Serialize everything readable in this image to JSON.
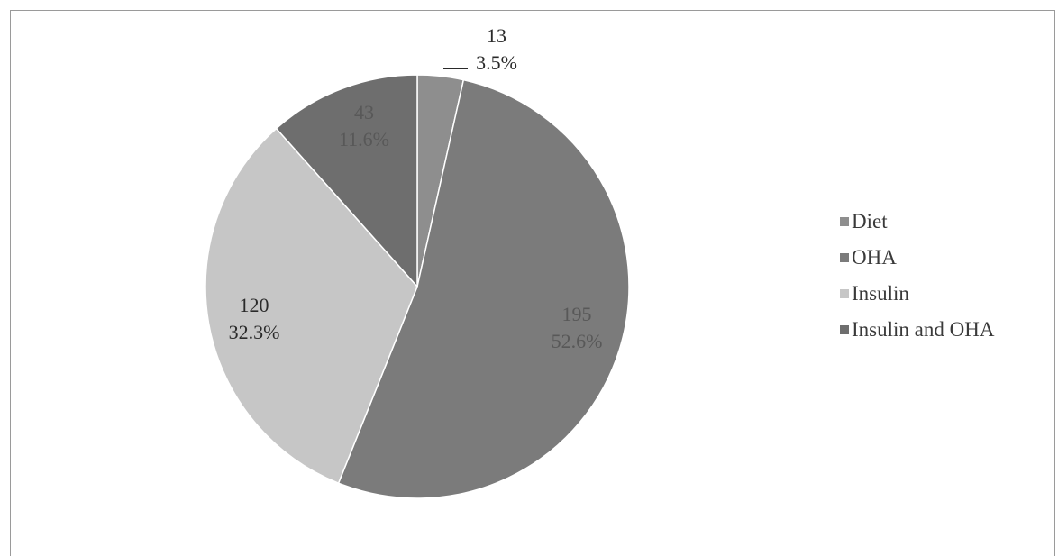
{
  "chart_data": {
    "type": "pie",
    "title": "",
    "categories": [
      "Diet",
      "OHA",
      "Insulin",
      "Insulin and OHA"
    ],
    "values": [
      13,
      195,
      120,
      43
    ],
    "percent_labels": [
      "3.5%",
      "52.6%",
      "32.3%",
      "11.6%"
    ],
    "value_labels": [
      "13",
      "195",
      "120",
      "43"
    ],
    "colors": [
      "#8e8e8e",
      "#7b7b7b",
      "#c6c6c6",
      "#6e6e6e"
    ],
    "label_colors": [
      "#2a2a2a",
      "#585858",
      "#2a2a2a",
      "#585858"
    ],
    "legend_position": "right",
    "start_angle_deg": 0,
    "direction": "clockwise"
  },
  "legend": {
    "items": [
      {
        "label": "Diet",
        "color": "#8e8e8e"
      },
      {
        "label": "OHA",
        "color": "#7b7b7b"
      },
      {
        "label": "Insulin",
        "color": "#c6c6c6"
      },
      {
        "label": "Insulin and OHA",
        "color": "#6e6e6e"
      }
    ]
  }
}
